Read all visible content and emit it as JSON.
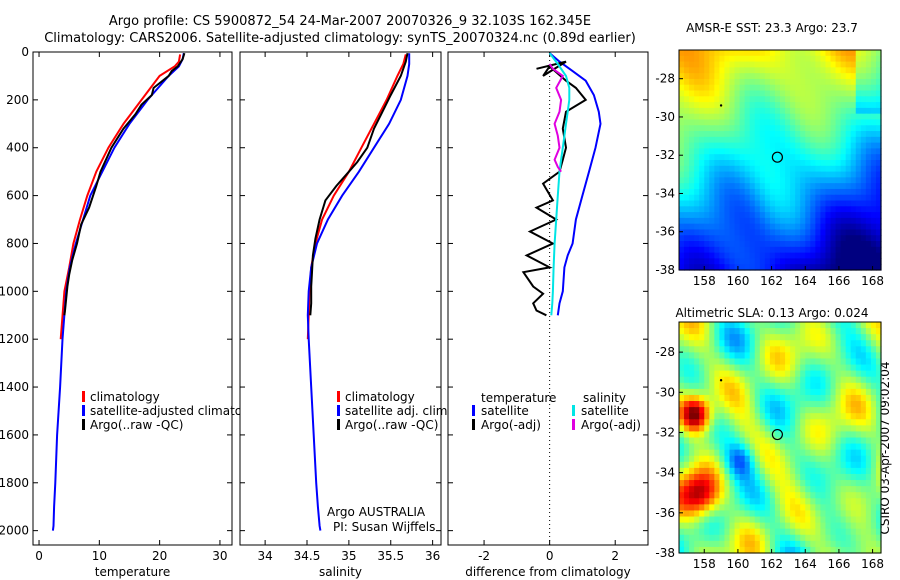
{
  "figure": {
    "title": "Argo profile: CS 5900872_54 24-Mar-2007 20070326_9 32.103S 162.345E",
    "subtitle": "Climatology: CARS2006. Satellite-adjusted climatology: synTS_20070324.nc (0.89d earlier)",
    "credit": "CSIRO 03-Apr-2007 09:02:04"
  },
  "colors": {
    "climatology": "#ff0000",
    "satellite": "#0000ff",
    "argo": "#000000",
    "sat_salinity": "#00e5e5",
    "argo_salinity": "#e000e0"
  },
  "chart_data": [
    {
      "id": "temperature",
      "type": "line",
      "xlabel": "temperature",
      "ylabel": "",
      "xlim": [
        -1,
        32
      ],
      "ylim": [
        2060,
        0
      ],
      "xticks": [
        "0",
        "10",
        "20",
        "30"
      ],
      "yticks": [
        "0",
        "200",
        "400",
        "600",
        "800",
        "1000",
        "1200",
        "1400",
        "1600",
        "1800",
        "2000"
      ],
      "legend": [
        {
          "label": "climatology",
          "color": "#ff0000"
        },
        {
          "label": "satellite-adjusted climatology",
          "color": "#0000ff"
        },
        {
          "label": "Argo(..raw -QC)",
          "color": "#000000"
        }
      ],
      "series": [
        {
          "name": "climatology",
          "color": "#ff0000",
          "x": [
            23.4,
            23.2,
            22.5,
            20,
            17,
            14,
            11.5,
            9.5,
            8,
            6.8,
            5.7,
            5,
            4.2,
            3.6
          ],
          "y": [
            10,
            40,
            60,
            100,
            200,
            300,
            400,
            500,
            600,
            700,
            800,
            900,
            1000,
            1200
          ]
        },
        {
          "name": "satellite-adjusted climatology",
          "color": "#0000ff",
          "x": [
            24.0,
            23.8,
            23.2,
            21.5,
            18,
            15,
            12.5,
            10.5,
            8.5,
            7.3,
            6.1,
            5.1,
            4.5,
            3.9,
            3.5,
            3.0,
            2.7,
            2.5,
            2.4,
            2.3
          ],
          "y": [
            5,
            30,
            60,
            100,
            200,
            300,
            400,
            500,
            600,
            700,
            800,
            900,
            1000,
            1200,
            1400,
            1600,
            1800,
            1900,
            1980,
            2000
          ]
        },
        {
          "name": "Argo(..raw -QC)",
          "color": "#000000",
          "x": [
            24.1,
            23.8,
            23.0,
            22.0,
            21.5,
            19,
            18.7,
            17,
            16,
            14,
            12,
            10.2,
            9.5,
            8.3,
            7,
            6.3,
            5.5,
            5.0,
            4.7,
            4.5,
            4.3,
            4.2
          ],
          "y": [
            5,
            30,
            60,
            80,
            100,
            150,
            180,
            220,
            260,
            320,
            400,
            500,
            560,
            650,
            720,
            800,
            870,
            930,
            980,
            1030,
            1080,
            1100
          ]
        }
      ]
    },
    {
      "id": "salinity",
      "type": "line",
      "xlabel": "salinity",
      "ylabel": "",
      "xlim": [
        33.7,
        36.1
      ],
      "ylim": [
        2060,
        0
      ],
      "xticks": [
        "34",
        "34.5",
        "35",
        "35.5",
        "36"
      ],
      "legend": [
        {
          "label": "climatology",
          "color": "#ff0000"
        },
        {
          "label": "satellite adj. clim.",
          "color": "#0000ff"
        },
        {
          "label": "Argo(..raw -QC)",
          "color": "#000000"
        }
      ],
      "annotations": [
        "Argo AUSTRALIA",
        "PI: Susan Wijffels"
      ],
      "series": [
        {
          "name": "climatology",
          "color": "#ff0000",
          "x": [
            35.68,
            35.65,
            35.58,
            35.45,
            35.3,
            35.15,
            35.0,
            34.82,
            34.68,
            34.6,
            34.55,
            34.53,
            34.52,
            34.51
          ],
          "y": [
            10,
            50,
            100,
            200,
            300,
            400,
            500,
            600,
            700,
            800,
            900,
            1000,
            1100,
            1200
          ]
        },
        {
          "name": "satellite adj. clim.",
          "color": "#0000ff",
          "x": [
            35.72,
            35.72,
            35.7,
            35.62,
            35.48,
            35.3,
            35.12,
            34.92,
            34.75,
            34.62,
            34.55,
            34.52,
            34.51,
            34.52,
            34.55,
            34.58,
            34.61,
            34.63,
            34.65,
            34.66
          ],
          "y": [
            5,
            50,
            100,
            200,
            300,
            400,
            500,
            600,
            700,
            800,
            900,
            1000,
            1100,
            1200,
            1400,
            1600,
            1800,
            1900,
            1980,
            2000
          ]
        },
        {
          "name": "Argo(..raw -QC)",
          "color": "#000000",
          "x": [
            35.7,
            35.68,
            35.62,
            35.5,
            35.4,
            35.3,
            35.22,
            35.1,
            35.0,
            34.85,
            34.72,
            34.65,
            34.6,
            34.57,
            34.56,
            34.55,
            34.55,
            34.54
          ],
          "y": [
            5,
            40,
            100,
            180,
            250,
            320,
            400,
            460,
            500,
            560,
            620,
            700,
            780,
            850,
            920,
            980,
            1050,
            1100
          ]
        }
      ]
    },
    {
      "id": "difference",
      "type": "line",
      "xlabel": "difference from climatology",
      "ylabel": "",
      "xlim": [
        -3.1,
        3.0
      ],
      "ylim": [
        2060,
        0
      ],
      "xticks": [
        "-2",
        "0",
        "2"
      ],
      "zero_line": true,
      "legend": [
        {
          "label": "temperature",
          "color": ""
        },
        {
          "label": "satellite",
          "color": "#0000ff"
        },
        {
          "label": "Argo(-adj)",
          "color": "#000000"
        },
        {
          "label": "salinity",
          "color": ""
        },
        {
          "label": "satellite",
          "color": "#00e5e5"
        },
        {
          "label": "Argo(-adj)",
          "color": "#e000e0"
        }
      ],
      "series": [
        {
          "name": "temperature satellite",
          "color": "#0000ff",
          "x": [
            0.0,
            0.3,
            0.7,
            1.1,
            1.35,
            1.5,
            1.55,
            1.4,
            1.2,
            1.0,
            0.8,
            0.7,
            0.55,
            0.45,
            0.4,
            0.3,
            0.25
          ],
          "y": [
            5,
            40,
            80,
            120,
            180,
            250,
            300,
            400,
            500,
            600,
            700,
            800,
            850,
            900,
            1000,
            1050,
            1100
          ]
        },
        {
          "name": "temperature Argo(-adj)",
          "color": "#000000",
          "x": [
            -0.4,
            0.5,
            -0.2,
            0.0,
            0.5,
            0.8,
            1.1,
            0.5,
            0.4,
            0.5,
            0.4,
            0.3,
            -0.2,
            0.1,
            -0.4,
            0.2,
            -0.6,
            0.1,
            -0.7,
            0.0,
            -0.8,
            -0.5,
            -0.2,
            -0.5,
            -0.4,
            -0.1
          ],
          "y": [
            70,
            40,
            100,
            60,
            120,
            150,
            200,
            250,
            320,
            400,
            450,
            500,
            550,
            620,
            650,
            700,
            750,
            800,
            850,
            900,
            920,
            980,
            1010,
            1050,
            1080,
            1100
          ]
        },
        {
          "name": "salinity satellite",
          "color": "#00e5e5",
          "x": [
            0.0,
            0.25,
            0.5,
            0.6,
            0.6,
            0.55,
            0.5,
            0.45,
            0.4,
            0.35,
            0.3,
            0.25,
            0.2,
            0.15,
            0.12,
            0.1,
            0.08,
            0.05
          ],
          "y": [
            5,
            50,
            100,
            150,
            200,
            250,
            300,
            350,
            400,
            450,
            500,
            600,
            700,
            800,
            900,
            1000,
            1050,
            1100
          ]
        },
        {
          "name": "salinity Argo(-adj)",
          "color": "#e000e0",
          "x": [
            0.0,
            0.1,
            0.4,
            0.2,
            0.35,
            0.3,
            0.15,
            0.25,
            0.3,
            0.15,
            0.25,
            0.35
          ],
          "y": [
            50,
            70,
            100,
            150,
            200,
            250,
            300,
            350,
            400,
            450,
            480,
            500
          ]
        }
      ]
    },
    {
      "id": "sst-map",
      "type": "heatmap",
      "title": "AMSR-E SST: 23.3 Argo: 23.7",
      "xlim": [
        156.5,
        168.5
      ],
      "ylim": [
        -38,
        -26.5
      ],
      "xticks": [
        "158",
        "160",
        "162",
        "164",
        "166",
        "168"
      ],
      "yticks": [
        "-28",
        "-30",
        "-32",
        "-34",
        "-36",
        "-38"
      ],
      "marker": {
        "lon": 162.345,
        "lat": -32.103
      },
      "description_colormap": "jet"
    },
    {
      "id": "sla-map",
      "type": "heatmap",
      "title": "Altimetric SLA: 0.13 Argo: 0.024",
      "xlim": [
        156.5,
        168.5
      ],
      "ylim": [
        -38,
        -26.5
      ],
      "xticks": [
        "158",
        "160",
        "162",
        "164",
        "166",
        "168"
      ],
      "yticks": [
        "-28",
        "-30",
        "-32",
        "-34",
        "-36",
        "-38"
      ],
      "marker": {
        "lon": 162.345,
        "lat": -32.103
      },
      "description_colormap": "jet"
    }
  ]
}
